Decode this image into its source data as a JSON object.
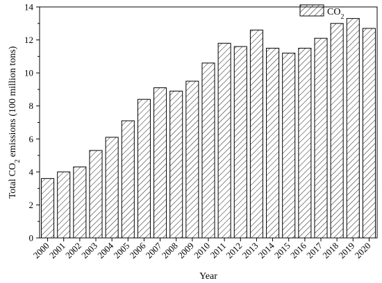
{
  "chart_data": {
    "type": "bar",
    "categories": [
      "2000",
      "2001",
      "2002",
      "2003",
      "2004",
      "2005",
      "2006",
      "2007",
      "2008",
      "2009",
      "2010",
      "2011",
      "2012",
      "2013",
      "2014",
      "2015",
      "2016",
      "2017",
      "2018",
      "2019",
      "2020"
    ],
    "series": [
      {
        "name": "CO2",
        "values": [
          3.6,
          4.0,
          4.3,
          5.3,
          6.1,
          7.1,
          8.4,
          9.1,
          8.9,
          9.5,
          10.6,
          11.8,
          11.6,
          12.6,
          11.5,
          11.2,
          11.5,
          12.1,
          13.0,
          13.3,
          12.7
        ]
      }
    ],
    "xlabel": "Year",
    "ylabel": {
      "prefix": "Total CO",
      "sub": "2",
      "suffix": " emissions (100 million tons)"
    },
    "legend": {
      "label": "CO",
      "sub": "2",
      "position": "top-right"
    },
    "ylim": [
      0,
      14
    ],
    "yticks": [
      0,
      2,
      4,
      6,
      8,
      10,
      12,
      14
    ],
    "grid": false,
    "bar_pattern": "diagonal-hatch",
    "colors": {
      "bar_fill": "#ffffff",
      "bar_stroke": "#000000",
      "hatch": "#000000"
    }
  }
}
